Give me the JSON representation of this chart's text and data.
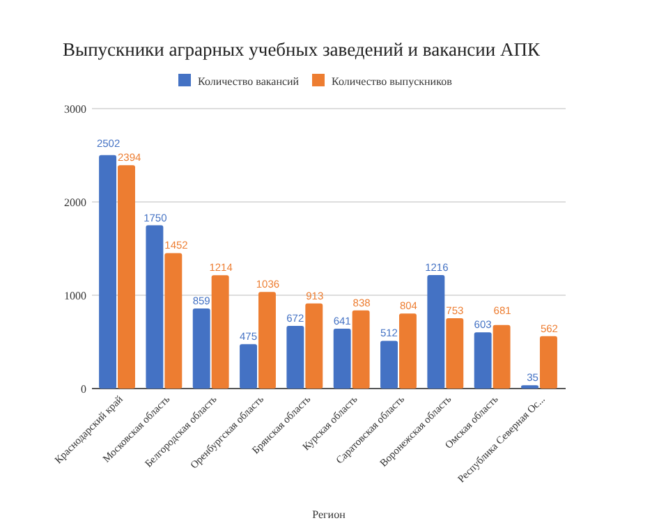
{
  "chart_data": {
    "type": "bar",
    "title": "Выпускники аграрных учебных заведений и вакансии АПК",
    "xlabel": "Регион",
    "categories": [
      "Краснодарский край",
      "Московская область",
      "Белгородская область",
      "Оренбургская область",
      "Брянская область",
      "Курская область",
      "Саратовская область",
      "Воронежская область",
      "Омская область",
      "Республика Северная Ос..."
    ],
    "series": [
      {
        "name": "Количество вакансий",
        "color": "#4472c4",
        "values": [
          2502,
          1750,
          859,
          475,
          672,
          641,
          512,
          1216,
          603,
          35
        ]
      },
      {
        "name": "Количество выпускников",
        "color": "#ed7d31",
        "values": [
          2394,
          1452,
          1214,
          1036,
          913,
          838,
          804,
          753,
          681,
          562
        ]
      }
    ],
    "ylim": [
      0,
      3000
    ],
    "yticks": [
      0,
      1000,
      2000,
      3000
    ],
    "grid": "y",
    "legend": "top",
    "data_labels": true
  }
}
